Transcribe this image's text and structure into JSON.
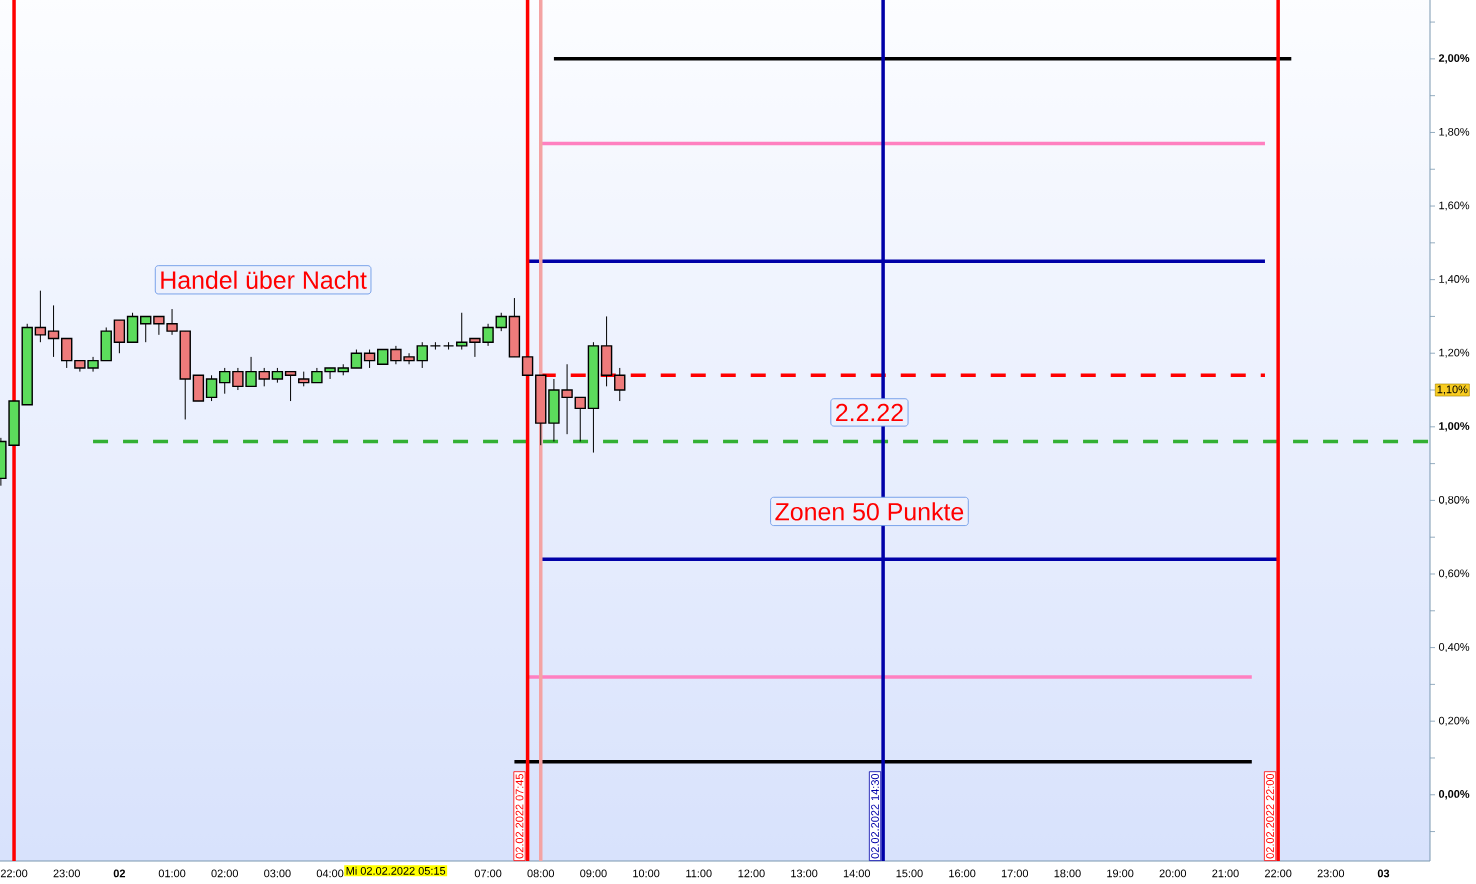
{
  "chart_data": {
    "type": "candlestick",
    "x": [
      "2022-02-01T21:45",
      "2022-02-01T22:00",
      "2022-02-01T22:15",
      "2022-02-01T22:30",
      "2022-02-01T22:45",
      "2022-02-01T23:00",
      "2022-02-01T23:15",
      "2022-02-01T23:30",
      "2022-02-01T23:45",
      "2022-02-02T00:00",
      "2022-02-02T00:15",
      "2022-02-02T00:30",
      "2022-02-02T00:45",
      "2022-02-02T01:00",
      "2022-02-02T01:15",
      "2022-02-02T01:30",
      "2022-02-02T01:45",
      "2022-02-02T02:00",
      "2022-02-02T02:15",
      "2022-02-02T02:30",
      "2022-02-02T02:45",
      "2022-02-02T03:00",
      "2022-02-02T03:15",
      "2022-02-02T03:30",
      "2022-02-02T03:45",
      "2022-02-02T04:00",
      "2022-02-02T04:15",
      "2022-02-02T04:30",
      "2022-02-02T04:45",
      "2022-02-02T05:00",
      "2022-02-02T05:15",
      "2022-02-02T05:30",
      "2022-02-02T05:45",
      "2022-02-02T06:00",
      "2022-02-02T06:15",
      "2022-02-02T06:30",
      "2022-02-02T06:45",
      "2022-02-02T07:00",
      "2022-02-02T07:15",
      "2022-02-02T07:30",
      "2022-02-02T07:45",
      "2022-02-02T08:00",
      "2022-02-02T08:15",
      "2022-02-02T08:30",
      "2022-02-02T08:45",
      "2022-02-02T09:00",
      "2022-02-02T09:15",
      "2022-02-02T09:30"
    ],
    "ohlc": [
      [
        0.86,
        0.97,
        0.84,
        0.96
      ],
      [
        0.95,
        1.07,
        0.95,
        1.07
      ],
      [
        1.06,
        1.28,
        1.06,
        1.27
      ],
      [
        1.27,
        1.37,
        1.23,
        1.25
      ],
      [
        1.26,
        1.33,
        1.19,
        1.24
      ],
      [
        1.24,
        1.24,
        1.16,
        1.18
      ],
      [
        1.18,
        1.18,
        1.15,
        1.16
      ],
      [
        1.16,
        1.19,
        1.15,
        1.18
      ],
      [
        1.18,
        1.27,
        1.18,
        1.26
      ],
      [
        1.29,
        1.29,
        1.2,
        1.23
      ],
      [
        1.23,
        1.31,
        1.23,
        1.3
      ],
      [
        1.28,
        1.3,
        1.23,
        1.3
      ],
      [
        1.3,
        1.3,
        1.25,
        1.28
      ],
      [
        1.28,
        1.32,
        1.25,
        1.26
      ],
      [
        1.26,
        1.26,
        1.02,
        1.13
      ],
      [
        1.14,
        1.14,
        1.07,
        1.07
      ],
      [
        1.08,
        1.14,
        1.07,
        1.13
      ],
      [
        1.12,
        1.16,
        1.09,
        1.15
      ],
      [
        1.15,
        1.16,
        1.1,
        1.11
      ],
      [
        1.11,
        1.19,
        1.11,
        1.15
      ],
      [
        1.15,
        1.16,
        1.11,
        1.13
      ],
      [
        1.13,
        1.16,
        1.12,
        1.15
      ],
      [
        1.15,
        1.15,
        1.07,
        1.14
      ],
      [
        1.13,
        1.15,
        1.11,
        1.12
      ],
      [
        1.12,
        1.16,
        1.12,
        1.15
      ],
      [
        1.15,
        1.16,
        1.13,
        1.16
      ],
      [
        1.15,
        1.17,
        1.14,
        1.16
      ],
      [
        1.16,
        1.21,
        1.16,
        1.2
      ],
      [
        1.2,
        1.21,
        1.16,
        1.18
      ],
      [
        1.17,
        1.21,
        1.17,
        1.21
      ],
      [
        1.21,
        1.22,
        1.17,
        1.18
      ],
      [
        1.19,
        1.2,
        1.17,
        1.18
      ],
      [
        1.18,
        1.23,
        1.16,
        1.22
      ],
      [
        1.22,
        1.23,
        1.21,
        1.22
      ],
      [
        1.22,
        1.23,
        1.21,
        1.22
      ],
      [
        1.22,
        1.31,
        1.21,
        1.23
      ],
      [
        1.24,
        1.24,
        1.19,
        1.23
      ],
      [
        1.23,
        1.28,
        1.22,
        1.27
      ],
      [
        1.27,
        1.31,
        1.26,
        1.3
      ],
      [
        1.3,
        1.35,
        1.19,
        1.19
      ],
      [
        1.19,
        1.19,
        1.14,
        1.14
      ],
      [
        1.14,
        1.14,
        0.95,
        1.01
      ],
      [
        1.01,
        1.13,
        0.96,
        1.1
      ],
      [
        1.1,
        1.17,
        0.98,
        1.08
      ],
      [
        1.08,
        1.08,
        0.96,
        1.05
      ],
      [
        1.05,
        1.23,
        0.93,
        1.22
      ],
      [
        1.22,
        1.3,
        1.11,
        1.14
      ],
      [
        1.14,
        1.16,
        1.07,
        1.1
      ]
    ],
    "series": [
      {
        "type": "line",
        "x": [
          "2022-02-02T08:15",
          "2022-02-02T22:15"
        ],
        "values": [
          2.0,
          2.0
        ],
        "color": "#000000",
        "line_style": "solid"
      },
      {
        "type": "line",
        "x": [
          "2022-02-02T08:00",
          "2022-02-02T21:45"
        ],
        "values": [
          1.77,
          1.77
        ],
        "color": "#ff80c0",
        "line_style": "solid"
      },
      {
        "type": "line",
        "x": [
          "2022-02-02T07:45",
          "2022-02-02T21:45"
        ],
        "values": [
          1.45,
          1.45
        ],
        "color": "#0000a8",
        "line_style": "solid"
      },
      {
        "type": "line",
        "x": [
          "2022-02-02T08:00",
          "2022-02-02T21:45"
        ],
        "values": [
          1.14,
          1.14
        ],
        "color": "#ff0000",
        "line_style": "dashed"
      },
      {
        "type": "line",
        "x": [
          "2022-02-01T23:30",
          "2022-02-03T00:53"
        ],
        "values": [
          0.96,
          0.96
        ],
        "color": "#33b033",
        "line_style": "dashed"
      },
      {
        "type": "line",
        "x": [
          "2022-02-02T08:00",
          "2022-02-02T22:00"
        ],
        "values": [
          0.64,
          0.64
        ],
        "color": "#0000a8",
        "line_style": "solid"
      },
      {
        "type": "line",
        "x": [
          "2022-02-02T07:45",
          "2022-02-02T21:30"
        ],
        "values": [
          0.32,
          0.32
        ],
        "color": "#ff80c0",
        "line_style": "solid"
      },
      {
        "type": "line",
        "x": [
          "2022-02-02T07:30",
          "2022-02-02T21:30"
        ],
        "values": [
          0.09,
          0.09
        ],
        "color": "#000000",
        "line_style": "solid"
      }
    ],
    "ref_lines": [
      {
        "axis": "x",
        "value": "2022-02-01T22:00",
        "color": "#ff0000"
      },
      {
        "axis": "x",
        "value": "2022-02-02T07:45",
        "label": "02.02.2022 07:45",
        "color": "#ff0000"
      },
      {
        "axis": "x",
        "value": "2022-02-02T08:00",
        "color": "#f4a3a3"
      },
      {
        "axis": "x",
        "value": "2022-02-02T14:30",
        "label": "02.02.2022 14:30",
        "color": "#0000a8"
      },
      {
        "axis": "x",
        "value": "2022-02-02T22:00",
        "label": "02.02.2022 22:00",
        "color": "#ff0000"
      }
    ],
    "annotations": [
      "Handel über Nacht",
      "2.2.22",
      "Zonen 50 Punkte",
      "1,10%",
      "Mi 02.02.2022 05:15"
    ],
    "xlim": [
      "2022-02-01T21:44",
      "2022-02-03T00:53"
    ],
    "ylim": [
      -0.18,
      2.16
    ],
    "xticks": [
      {
        "value": "2022-02-01T22:00",
        "label": "22:00"
      },
      {
        "value": "2022-02-01T23:00",
        "label": "23:00"
      },
      {
        "value": "2022-02-02T00:00",
        "label": "02"
      },
      {
        "value": "2022-02-02T01:00",
        "label": "01:00"
      },
      {
        "value": "2022-02-02T02:00",
        "label": "02:00"
      },
      {
        "value": "2022-02-02T03:00",
        "label": "03:00"
      },
      {
        "value": "2022-02-02T04:00",
        "label": "04:00"
      },
      {
        "value": "2022-02-02T07:00",
        "label": "07:00"
      },
      {
        "value": "2022-02-02T08:00",
        "label": "08:00"
      },
      {
        "value": "2022-02-02T09:00",
        "label": "09:00"
      },
      {
        "value": "2022-02-02T10:00",
        "label": "10:00"
      },
      {
        "value": "2022-02-02T11:00",
        "label": "11:00"
      },
      {
        "value": "2022-02-02T12:00",
        "label": "12:00"
      },
      {
        "value": "2022-02-02T13:00",
        "label": "13:00"
      },
      {
        "value": "2022-02-02T14:00",
        "label": "14:00"
      },
      {
        "value": "2022-02-02T15:00",
        "label": "15:00"
      },
      {
        "value": "2022-02-02T16:00",
        "label": "16:00"
      },
      {
        "value": "2022-02-02T17:00",
        "label": "17:00"
      },
      {
        "value": "2022-02-02T18:00",
        "label": "18:00"
      },
      {
        "value": "2022-02-02T19:00",
        "label": "19:00"
      },
      {
        "value": "2022-02-02T20:00",
        "label": "20:00"
      },
      {
        "value": "2022-02-02T21:00",
        "label": "21:00"
      },
      {
        "value": "2022-02-02T22:00",
        "label": "22:00"
      },
      {
        "value": "2022-02-02T23:00",
        "label": "23:00"
      },
      {
        "value": "2022-02-03T00:00",
        "label": "03"
      }
    ],
    "yticks": [
      {
        "value": -0.1,
        "label": null
      },
      {
        "value": 0,
        "label": "0,00%"
      },
      {
        "value": 0.1,
        "label": null
      },
      {
        "value": 0.2,
        "label": "0,20%"
      },
      {
        "value": 0.3,
        "label": null
      },
      {
        "value": 0.4,
        "label": "0,40%"
      },
      {
        "value": 0.5,
        "label": null
      },
      {
        "value": 0.6,
        "label": "0,60%"
      },
      {
        "value": 0.7,
        "label": null
      },
      {
        "value": 0.8,
        "label": "0,80%"
      },
      {
        "value": 0.9,
        "label": null
      },
      {
        "value": 1.0,
        "label": "1,00%"
      },
      {
        "value": 1.1,
        "label": null
      },
      {
        "value": 1.2,
        "label": "1,20%"
      },
      {
        "value": 1.3,
        "label": null
      },
      {
        "value": 1.4,
        "label": "1,40%"
      },
      {
        "value": 1.5,
        "label": null
      },
      {
        "value": 1.6,
        "label": "1,60%"
      },
      {
        "value": 1.7,
        "label": null
      },
      {
        "value": 1.8,
        "label": "1,80%"
      },
      {
        "value": 1.9,
        "label": null
      },
      {
        "value": 2.0,
        "label": "2,00%"
      },
      {
        "value": 2.1,
        "label": null
      }
    ]
  }
}
